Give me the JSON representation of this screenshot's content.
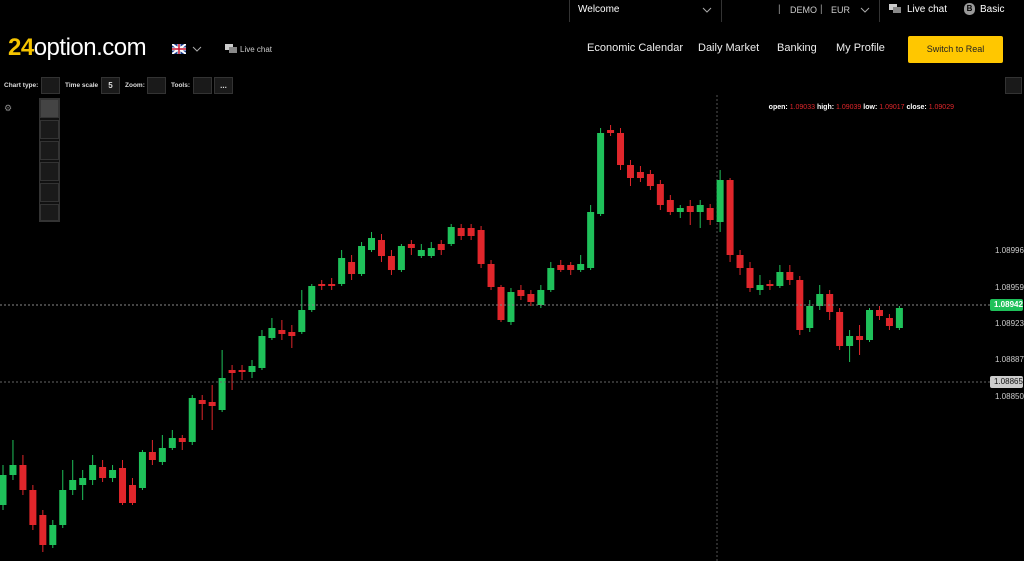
{
  "top_bar": {
    "welcome": "Welcome",
    "mode": "DEMO",
    "currency": "EUR",
    "live_chat": "Live chat",
    "account_badge": "B",
    "account_level": "Basic"
  },
  "nav": {
    "logo_number": "24",
    "logo_text": "option.com",
    "live_chat": "Live chat",
    "menu": [
      "Economic Calendar",
      "Daily Market",
      "Banking",
      "My Profile"
    ],
    "cta": "Switch to Real"
  },
  "toolbar": {
    "chart_type": "Chart type:",
    "time_scale": "Time scale",
    "time_scale_value": 5,
    "zoom": "Zoom:",
    "tools": "Tools:",
    "more": "..."
  },
  "chart_data": {
    "type": "candlestick",
    "up_color": "#1fc15a",
    "down_color": "#e0262b",
    "ylim": [
      1.08686,
      1.09152
    ],
    "yticks": [
      {
        "value": 1.0885,
        "label": "1.08850"
      },
      {
        "value": 1.08887,
        "label": "1.08887"
      },
      {
        "value": 1.08923,
        "label": "1.08923"
      },
      1.08959,
      1.08996
    ],
    "price_line": 1.08942,
    "crosshair": 1.08865,
    "readout": [
      {
        "label": "open:",
        "value": 1.09033
      },
      {
        "label": "high:",
        "value": 1.09039
      },
      {
        "label": "low:",
        "value": 1.09017
      },
      {
        "label": "close:",
        "value": 1.09029
      }
    ],
    "open": [
      1.08742,
      1.08772,
      1.08782,
      1.08757,
      1.08732,
      1.08702,
      1.08722,
      1.08757,
      1.08762,
      1.08767,
      1.0878,
      1.08769,
      1.08779,
      1.08762,
      1.08759,
      1.08795,
      1.08785,
      1.08799,
      1.08809,
      1.08805,
      1.08847,
      1.08845,
      1.08837,
      1.08877,
      1.08877,
      1.08875,
      1.08879,
      1.08909,
      1.08917,
      1.08915,
      1.08915,
      1.08937,
      1.08963,
      1.08963,
      1.08963,
      1.08985,
      1.08973,
      1.08997,
      1.09007,
      1.08991,
      1.08977,
      1.09003,
      1.08991,
      1.08991,
      1.09003,
      1.09003,
      1.09019,
      1.09019,
      1.09017,
      1.08983,
      1.0896,
      1.08925,
      1.08957,
      1.08953,
      1.08942,
      1.08957,
      1.08982,
      1.08982,
      1.08977,
      1.08979,
      1.09033,
      1.09117,
      1.09114,
      1.09082,
      1.09075,
      1.09073,
      1.09063,
      1.09047,
      1.09035,
      1.09041,
      1.09035,
      1.09039,
      1.09025,
      1.09067,
      1.08992,
      1.08979,
      1.08957,
      1.08963,
      1.08961,
      1.08975,
      1.08967,
      1.08919,
      1.08941,
      1.08953,
      1.08935,
      1.08901,
      1.08911,
      1.08907,
      1.08937,
      1.08929,
      1.08919
    ],
    "high": [
      1.08782,
      1.08807,
      1.08792,
      1.08762,
      1.08737,
      1.08727,
      1.08777,
      1.08787,
      1.08777,
      1.08792,
      1.08787,
      1.08782,
      1.08787,
      1.08769,
      1.08797,
      1.08807,
      1.08812,
      1.08817,
      1.08812,
      1.08852,
      1.08852,
      1.08862,
      1.08897,
      1.08882,
      1.08882,
      1.08887,
      1.08917,
      1.08929,
      1.08927,
      1.08922,
      1.08957,
      1.08963,
      1.08967,
      1.08969,
      1.08997,
      1.08992,
      1.09005,
      1.09015,
      1.09013,
      1.08997,
      1.09003,
      1.09007,
      1.09003,
      1.09005,
      1.09007,
      1.09023,
      1.09023,
      1.09023,
      1.09021,
      1.08987,
      1.08962,
      1.08959,
      1.08962,
      1.08957,
      1.08962,
      1.08985,
      1.08987,
      1.08985,
      1.08992,
      1.09042,
      1.09119,
      1.09122,
      1.09119,
      1.09087,
      1.09081,
      1.09077,
      1.09067,
      1.09052,
      1.09042,
      1.09047,
      1.09047,
      1.09043,
      1.09077,
      1.09069,
      1.08997,
      1.08985,
      1.08972,
      1.08967,
      1.08982,
      1.08982,
      1.08971,
      1.08947,
      1.08962,
      1.08957,
      1.08939,
      1.08917,
      1.08922,
      1.08939,
      1.08941,
      1.08933,
      1.08941
    ],
    "low": [
      1.08737,
      1.08767,
      1.08752,
      1.08717,
      1.08695,
      1.08699,
      1.08719,
      1.08752,
      1.08747,
      1.08762,
      1.08765,
      1.08765,
      1.08742,
      1.08742,
      1.08757,
      1.08782,
      1.08782,
      1.08797,
      1.08797,
      1.08802,
      1.08827,
      1.08817,
      1.08835,
      1.08857,
      1.08867,
      1.08869,
      1.08877,
      1.08907,
      1.08907,
      1.08899,
      1.08913,
      1.08935,
      1.08957,
      1.08957,
      1.08961,
      1.08967,
      1.08971,
      1.08995,
      1.08985,
      1.08972,
      1.08975,
      1.08992,
      1.08989,
      1.08989,
      1.08992,
      1.09001,
      1.09007,
      1.09007,
      1.08979,
      1.08957,
      1.08925,
      1.08922,
      1.08947,
      1.08941,
      1.08939,
      1.08955,
      1.08975,
      1.08972,
      1.08975,
      1.08977,
      1.09031,
      1.09111,
      1.09077,
      1.09061,
      1.09065,
      1.09057,
      1.09037,
      1.09032,
      1.09029,
      1.09022,
      1.09019,
      1.09022,
      1.09015,
      1.08985,
      1.08972,
      1.08955,
      1.08952,
      1.08957,
      1.08959,
      1.08962,
      1.08912,
      1.08915,
      1.08937,
      1.08927,
      1.08897,
      1.08885,
      1.08892,
      1.08905,
      1.08927,
      1.08917,
      1.08917
    ],
    "close": [
      1.08772,
      1.08782,
      1.08757,
      1.08722,
      1.08702,
      1.08722,
      1.08757,
      1.08767,
      1.08769,
      1.08782,
      1.08769,
      1.08777,
      1.08744,
      1.08744,
      1.08795,
      1.08787,
      1.08799,
      1.08809,
      1.08805,
      1.08849,
      1.08843,
      1.08841,
      1.08869,
      1.08874,
      1.08875,
      1.08881,
      1.08911,
      1.08919,
      1.08913,
      1.08911,
      1.08937,
      1.08961,
      1.08961,
      1.08961,
      1.08989,
      1.08973,
      1.09001,
      1.09009,
      1.08991,
      1.08977,
      1.09001,
      1.08999,
      1.08997,
      1.08999,
      1.08997,
      1.0902,
      1.09011,
      1.09011,
      1.08983,
      1.0896,
      1.08927,
      1.08955,
      1.08951,
      1.08945,
      1.08957,
      1.08979,
      1.08977,
      1.08977,
      1.08983,
      1.09035,
      1.09114,
      1.09114,
      1.09082,
      1.09069,
      1.09069,
      1.09061,
      1.09042,
      1.09035,
      1.09039,
      1.09035,
      1.09042,
      1.09027,
      1.09067,
      1.08992,
      1.08979,
      1.08959,
      1.08962,
      1.08961,
      1.08975,
      1.08967,
      1.08917,
      1.08941,
      1.08953,
      1.08935,
      1.08901,
      1.08911,
      1.08907,
      1.08937,
      1.08931,
      1.08921,
      1.08939
    ]
  }
}
